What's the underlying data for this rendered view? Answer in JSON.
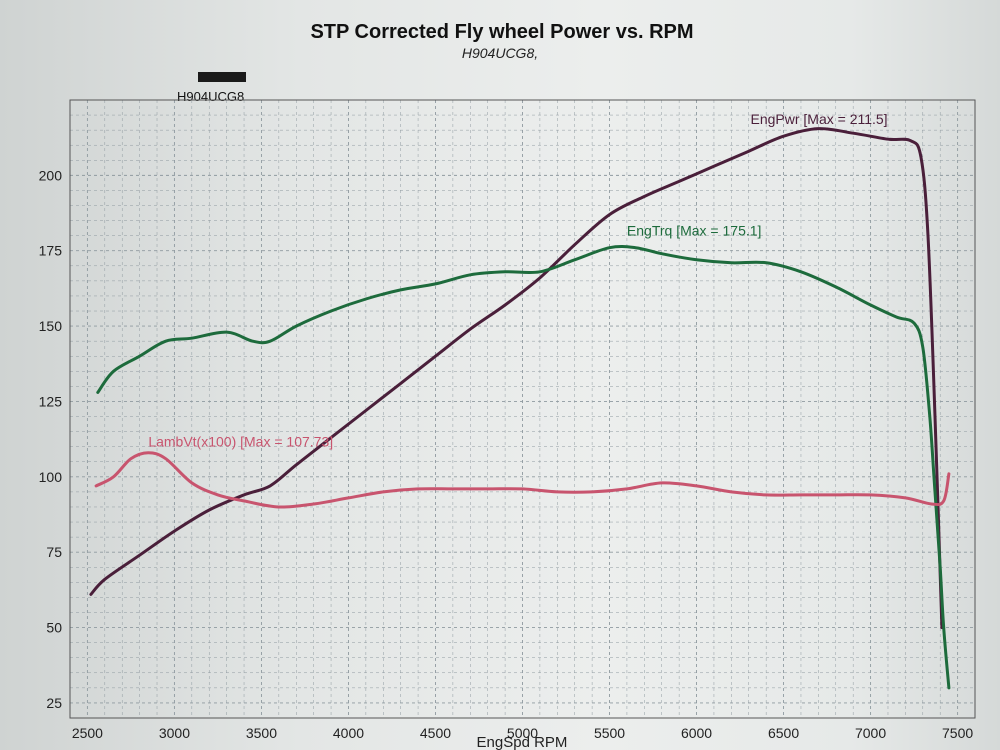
{
  "chart_data": {
    "type": "line",
    "title": "STP Corrected Fly wheel Power vs. RPM",
    "subtitle": "H904UCG8,",
    "legend_entry": "H904UCG8",
    "legend_color": "#1a1a1a",
    "xlabel": "EngSpd  RPM",
    "xlim": [
      2400,
      7600
    ],
    "ylim": [
      20,
      225
    ],
    "xticks": [
      2500,
      3000,
      3500,
      4000,
      4500,
      5000,
      5500,
      6000,
      6500,
      7000,
      7500
    ],
    "yticks": [
      25,
      50,
      75,
      100,
      125,
      150,
      175,
      200
    ],
    "grid": true,
    "series": [
      {
        "name": "EngPwr",
        "label": "EngPwr [Max = 211.5]",
        "label_at": [
          6310,
          217
        ],
        "color": "#4a1f3a",
        "x": [
          2520,
          2600,
          2800,
          3000,
          3200,
          3400,
          3550,
          3700,
          3900,
          4100,
          4300,
          4500,
          4700,
          4900,
          5100,
          5300,
          5500,
          5700,
          5900,
          6100,
          6300,
          6500,
          6700,
          6900,
          7100,
          7230,
          7290,
          7330,
          7370,
          7410
        ],
        "values": [
          61,
          66,
          74,
          82,
          89,
          94,
          97,
          104,
          113,
          122,
          131,
          140,
          149,
          157,
          166,
          177,
          187,
          193,
          198,
          203,
          208,
          213,
          215.5,
          214,
          212,
          211.5,
          206,
          180,
          120,
          50
        ]
      },
      {
        "name": "EngTrq",
        "label": "EngTrq [Max = 175.1]",
        "label_at": [
          5600,
          180
        ],
        "color": "#1d6b3c",
        "x": [
          2560,
          2650,
          2800,
          2950,
          3100,
          3300,
          3450,
          3550,
          3700,
          3900,
          4100,
          4300,
          4500,
          4700,
          4900,
          5100,
          5300,
          5500,
          5650,
          5800,
          6000,
          6200,
          6400,
          6600,
          6800,
          7000,
          7150,
          7250,
          7300,
          7340,
          7370,
          7400,
          7420,
          7450
        ],
        "values": [
          128,
          135,
          140,
          145,
          146,
          148,
          145,
          145,
          150,
          155,
          159,
          162,
          164,
          167,
          168,
          168,
          172,
          176,
          176,
          174,
          172,
          171,
          171,
          168,
          163,
          157,
          153,
          151,
          143,
          120,
          95,
          70,
          50,
          30
        ]
      },
      {
        "name": "LambVt",
        "label": "LambVt(x100) [Max = 107.73]",
        "label_at": [
          2850,
          110
        ],
        "color": "#c8546e",
        "x": [
          2550,
          2650,
          2750,
          2850,
          2950,
          3100,
          3250,
          3400,
          3600,
          3800,
          4000,
          4200,
          4400,
          4600,
          4800,
          5000,
          5200,
          5400,
          5600,
          5800,
          6000,
          6200,
          6400,
          6600,
          6800,
          7000,
          7200,
          7350,
          7420,
          7450
        ],
        "values": [
          97,
          100,
          106,
          108,
          106,
          98,
          94,
          92,
          90,
          91,
          93,
          95,
          96,
          96,
          96,
          96,
          95,
          95,
          96,
          98,
          97,
          95,
          94,
          94,
          94,
          94,
          93,
          91,
          92,
          101
        ]
      }
    ]
  }
}
